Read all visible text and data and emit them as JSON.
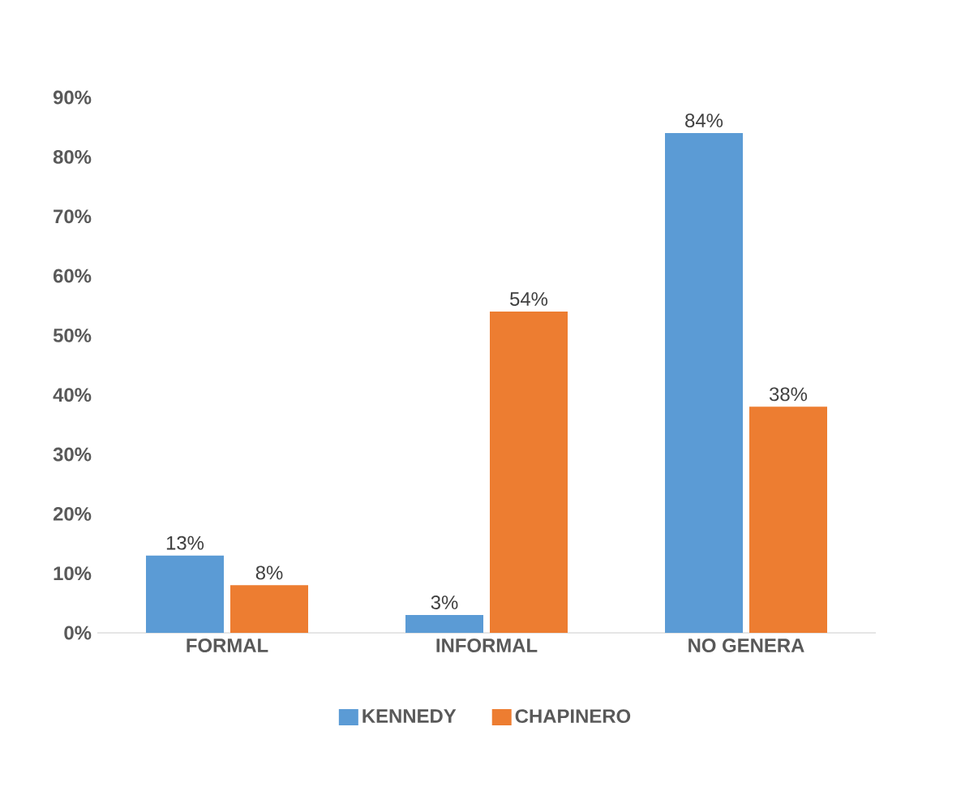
{
  "chart_data": {
    "type": "bar",
    "categories": [
      "FORMAL",
      "INFORMAL",
      "NO GENERA"
    ],
    "series": [
      {
        "name": "KENNEDY",
        "color": "#5b9bd5",
        "values": [
          13,
          3,
          84
        ],
        "value_labels": [
          "13%",
          "3%",
          "84%"
        ]
      },
      {
        "name": "CHAPINERO",
        "color": "#ed7d31",
        "values": [
          8,
          54,
          38
        ],
        "value_labels": [
          "8%",
          "54%",
          "38%"
        ]
      }
    ],
    "ylim": [
      0,
      90
    ],
    "yticks": [
      {
        "value": 0,
        "label": "0%"
      },
      {
        "value": 10,
        "label": "10%"
      },
      {
        "value": 20,
        "label": "20%"
      },
      {
        "value": 30,
        "label": "30%"
      },
      {
        "value": 40,
        "label": "40%"
      },
      {
        "value": 50,
        "label": "50%"
      },
      {
        "value": 60,
        "label": "60%"
      },
      {
        "value": 70,
        "label": "70%"
      },
      {
        "value": 80,
        "label": "80%"
      },
      {
        "value": 90,
        "label": "90%"
      }
    ],
    "grid": false,
    "legend": "bottom"
  }
}
